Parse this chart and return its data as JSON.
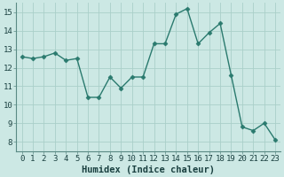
{
  "x": [
    0,
    1,
    2,
    3,
    4,
    5,
    6,
    7,
    8,
    9,
    10,
    11,
    12,
    13,
    14,
    15,
    16,
    17,
    18,
    19,
    20,
    21,
    22,
    23
  ],
  "y": [
    12.6,
    12.5,
    12.6,
    12.8,
    12.4,
    12.5,
    10.4,
    10.4,
    11.5,
    10.9,
    11.5,
    11.5,
    13.3,
    13.3,
    14.9,
    15.2,
    13.3,
    13.9,
    14.4,
    11.6,
    8.8,
    8.6,
    9.0,
    8.1
  ],
  "line_color": "#2a7a6e",
  "marker": "D",
  "marker_size": 2.5,
  "bg_color": "#cce8e4",
  "grid_color": "#aacfc9",
  "xlabel": "Humidex (Indice chaleur)",
  "xlabel_fontsize": 7.5,
  "ylim": [
    7.5,
    15.5
  ],
  "xlim": [
    -0.5,
    23.5
  ],
  "yticks": [
    8,
    9,
    10,
    11,
    12,
    13,
    14,
    15
  ],
  "xticks": [
    0,
    1,
    2,
    3,
    4,
    5,
    6,
    7,
    8,
    9,
    10,
    11,
    12,
    13,
    14,
    15,
    16,
    17,
    18,
    19,
    20,
    21,
    22,
    23
  ],
  "tick_fontsize": 6.5,
  "line_width": 1.0
}
